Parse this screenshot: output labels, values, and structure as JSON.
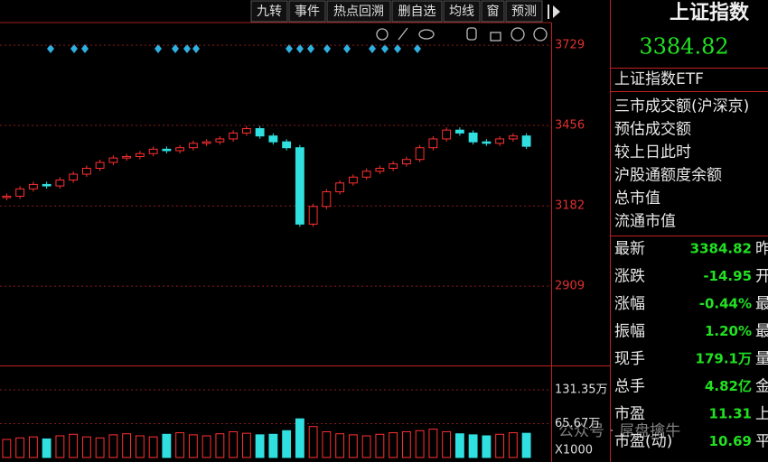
{
  "toolbar": {
    "buttons": [
      "九转",
      "事件",
      "热点回溯",
      "删自选",
      "均线",
      "窗",
      "预测"
    ]
  },
  "chart_data": {
    "type": "line",
    "values": [
      3215,
      3240,
      3255,
      3250,
      3270,
      3290,
      3310,
      3330,
      3345,
      3350,
      3360,
      3375,
      3370,
      3380,
      3395,
      3400,
      3410,
      3430,
      3445,
      3420,
      3400,
      3380,
      3120,
      3180,
      3230,
      3260,
      3280,
      3300,
      3310,
      3325,
      3340,
      3380,
      3410,
      3440,
      3430,
      3400,
      3395,
      3410,
      3420,
      3384.82
    ],
    "ylim": [
      2639,
      3806
    ],
    "yticks": [
      3729,
      3456,
      3182,
      2909
    ],
    "grid": true,
    "up_color": "#ff3030",
    "down_color": "#30e0e0",
    "volume": {
      "values": [
        35,
        38,
        40,
        36,
        42,
        45,
        40,
        38,
        44,
        46,
        42,
        40,
        45,
        48,
        44,
        42,
        46,
        50,
        47,
        44,
        45,
        52,
        75,
        60,
        50,
        46,
        44,
        42,
        45,
        48,
        50,
        52,
        55,
        50,
        46,
        44,
        42,
        45,
        48,
        47
      ],
      "ylim": [
        0,
        178.6
      ],
      "yticks": [
        {
          "value": 131.35,
          "label": "131.35万"
        },
        {
          "value": 65.67,
          "label": "65.67万"
        }
      ],
      "unit_label": "X1000"
    }
  },
  "panel": {
    "title": "上证指数",
    "price": "3384.82",
    "etf": "上证指数ETF",
    "items": [
      "三市成交额(沪深京)",
      "预估成交额",
      "较上日此时",
      "沪股通额度余额",
      "总市值",
      "流通市值"
    ],
    "quote": [
      {
        "label": "最新",
        "value": "3384.82",
        "tail": "昨"
      },
      {
        "label": "涨跌",
        "value": "-14.95",
        "tail": "开"
      },
      {
        "label": "涨幅",
        "value": "-0.44%",
        "tail": "最"
      },
      {
        "label": "振幅",
        "value": "1.20%",
        "tail": "最"
      },
      {
        "label": "现手",
        "value": "179.1万",
        "tail": "量"
      },
      {
        "label": "总手",
        "value": "4.82亿",
        "tail": "金"
      },
      {
        "label": "市盈",
        "value": "11.31",
        "tail": "上"
      },
      {
        "label": "市盈(动)",
        "value": "10.69",
        "tail": "平"
      }
    ]
  },
  "watermark": "公众号 · 屌盘擒牛"
}
